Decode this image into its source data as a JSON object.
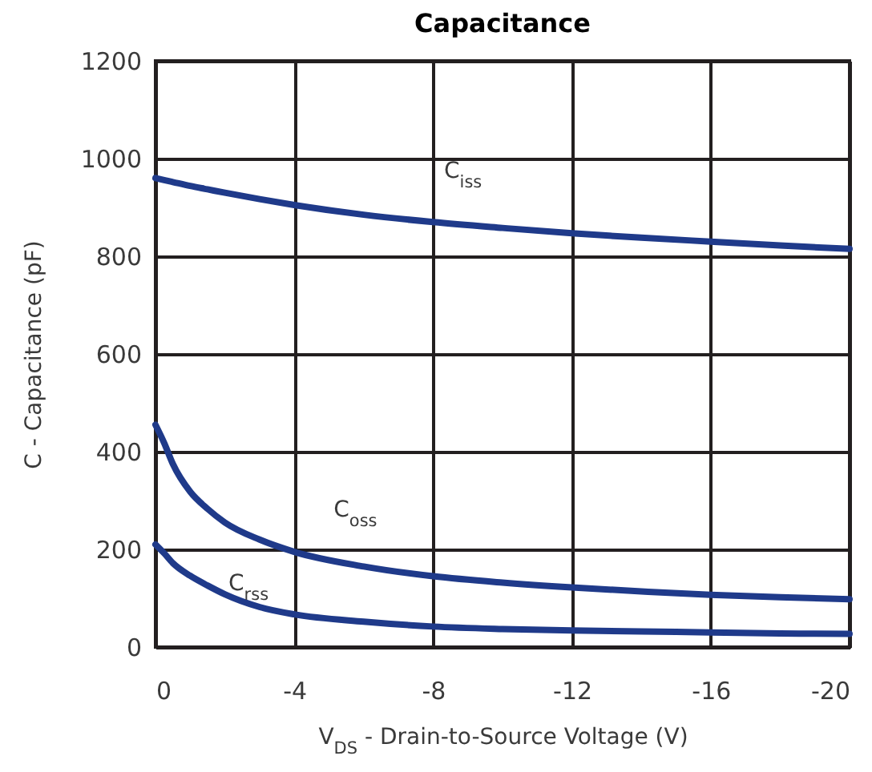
{
  "chart_data": {
    "type": "line",
    "title": "Capacitance",
    "xlabel": "V$_{DS}$ - Drain-to-Source Voltage (V)",
    "ylabel": "C - Capacitance (pF)",
    "x": [
      0,
      -0.25,
      -0.5,
      -1,
      -1.5,
      -2,
      -3,
      -4,
      -6,
      -8,
      -10,
      -12,
      -14,
      -16,
      -18,
      -20
    ],
    "series": [
      {
        "name": "C$_{iss}$",
        "color": "#1f3a8a",
        "values": [
          960,
          956,
          952,
          944,
          937,
          930,
          917,
          905,
          885,
          870,
          858,
          847,
          838,
          830,
          822,
          815
        ]
      },
      {
        "name": "C$_{oss}$",
        "color": "#1f3a8a",
        "values": [
          455,
          418,
          375,
          318,
          283,
          255,
          220,
          195,
          165,
          145,
          132,
          122,
          114,
          107,
          102,
          98
        ]
      },
      {
        "name": "C$_{rss}$",
        "color": "#1f3a8a",
        "values": [
          210,
          192,
          172,
          146,
          126,
          108,
          82,
          67,
          52,
          42,
          37,
          34,
          32,
          30,
          28,
          27
        ]
      }
    ],
    "xlim": [
      0,
      -20
    ],
    "xticks": [
      0,
      -4,
      -8,
      -12,
      -16,
      -20
    ],
    "ylim": [
      0,
      1200
    ],
    "yticks": [
      0,
      200,
      400,
      600,
      800,
      1000,
      1200
    ],
    "grid": true,
    "line_style": "solid"
  }
}
